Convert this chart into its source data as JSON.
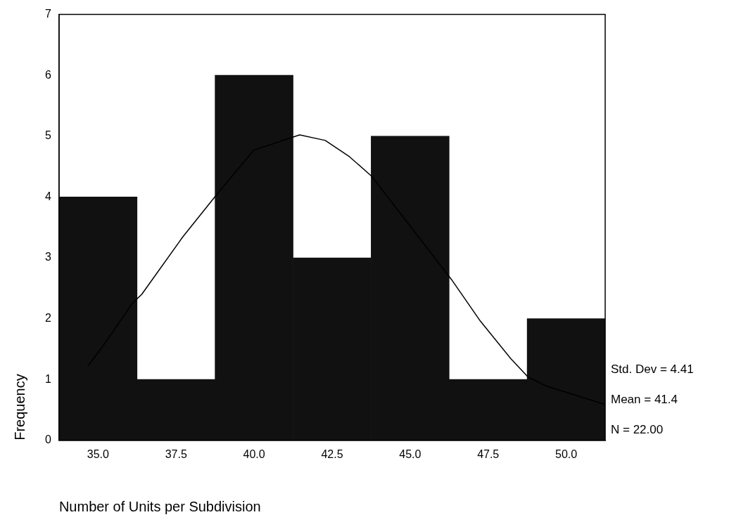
{
  "chart_data": {
    "type": "histogram",
    "xlabel": "Number of Units per Subdivision",
    "ylabel": "Frequency",
    "bins": [
      33.75,
      36.25,
      38.75,
      41.25,
      43.75,
      46.25,
      48.75,
      51.25
    ],
    "values": [
      4,
      1,
      6,
      3,
      5,
      1,
      2
    ],
    "color": "#111111",
    "series": [
      {
        "type": "line",
        "color": "#000000",
        "x": [
          34.67,
          35.17,
          36.11,
          36.4,
          37.71,
          38.85,
          39.99,
          41.46,
          42.28,
          43.06,
          43.77,
          46.33,
          47.25,
          48.23,
          48.78,
          49.38,
          51.25
        ],
        "values": [
          1.22,
          1.56,
          2.26,
          2.4,
          3.34,
          4.07,
          4.77,
          5.02,
          4.93,
          4.66,
          4.34,
          2.64,
          1.96,
          1.34,
          1.04,
          0.89,
          0.59
        ]
      }
    ],
    "xlim": [
      33.75,
      51.25
    ],
    "xticks": [
      {
        "value": 35,
        "label": "35.0"
      },
      {
        "value": 37.5,
        "label": "37.5"
      },
      {
        "value": 40,
        "label": "40.0"
      },
      {
        "value": 42.5,
        "label": "42.5"
      },
      {
        "value": 45,
        "label": "45.0"
      },
      {
        "value": 47.5,
        "label": "47.5"
      },
      {
        "value": 50,
        "label": "50.0"
      }
    ],
    "ylim": [
      0,
      7
    ],
    "yticks": [
      0,
      1,
      2,
      3,
      4,
      5,
      6,
      7
    ],
    "grid": false,
    "legend": false,
    "annotations": [
      "Std. Dev = 4.41",
      "Mean = 41.4",
      "N = 22.00"
    ]
  }
}
